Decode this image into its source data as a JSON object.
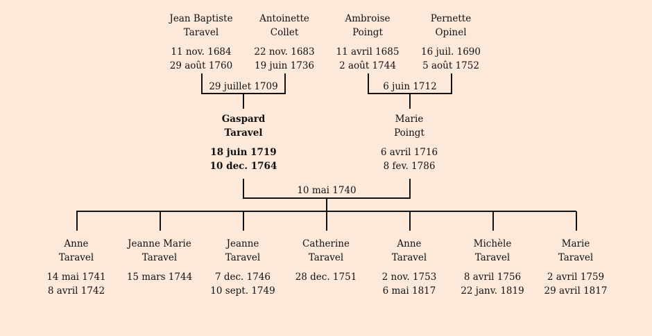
{
  "grandparents": [
    {
      "first": "Jean Baptiste",
      "last": "Taravel",
      "birth": "11 nov. 1684",
      "death": "29 août 1760"
    },
    {
      "first": "Antoinette",
      "last": "Collet",
      "birth": "22 nov. 1683",
      "death": "19 juin 1736"
    },
    {
      "first": "Ambroise",
      "last": "Poingt",
      "birth": "11 avril 1685",
      "death": "2 août 1744"
    },
    {
      "first": "Pernette",
      "last": "Opinel",
      "birth": "16 juil. 1690",
      "death": "5 août 1752"
    }
  ],
  "grandparent_marriages": [
    "29 juillet 1709",
    "6 juin 1712"
  ],
  "parents": [
    {
      "first": "Gaspard",
      "last": "Taravel",
      "birth": "18 juin 1719",
      "death": "10 dec. 1764"
    },
    {
      "first": "Marie",
      "last": "Poingt",
      "birth": "6 avril 1716",
      "death": "8 fev. 1786"
    }
  ],
  "parent_marriage": "10 mai 1740",
  "children": [
    {
      "first": "Anne",
      "last": "Taravel",
      "birth": "14 mai 1741",
      "death": "8 avril 1742"
    },
    {
      "first": "Jeanne Marie",
      "last": "Taravel",
      "birth": "15 mars 1744",
      "death": ""
    },
    {
      "first": "Jeanne",
      "last": "Taravel",
      "birth": "7 dec. 1746",
      "death": "10 sept. 1749"
    },
    {
      "first": "Catherine",
      "last": "Taravel",
      "birth": "28 dec. 1751",
      "death": ""
    },
    {
      "first": "Anne",
      "last": "Taravel",
      "birth": "2 nov. 1753",
      "death": "6 mai 1817"
    },
    {
      "first": "Michèle",
      "last": "Taravel",
      "birth": "8 avril 1756",
      "death": "22 janv. 1819"
    },
    {
      "first": "Marie",
      "last": "Taravel",
      "birth": "2 avril 1759",
      "death": "29 avril 1817"
    }
  ]
}
